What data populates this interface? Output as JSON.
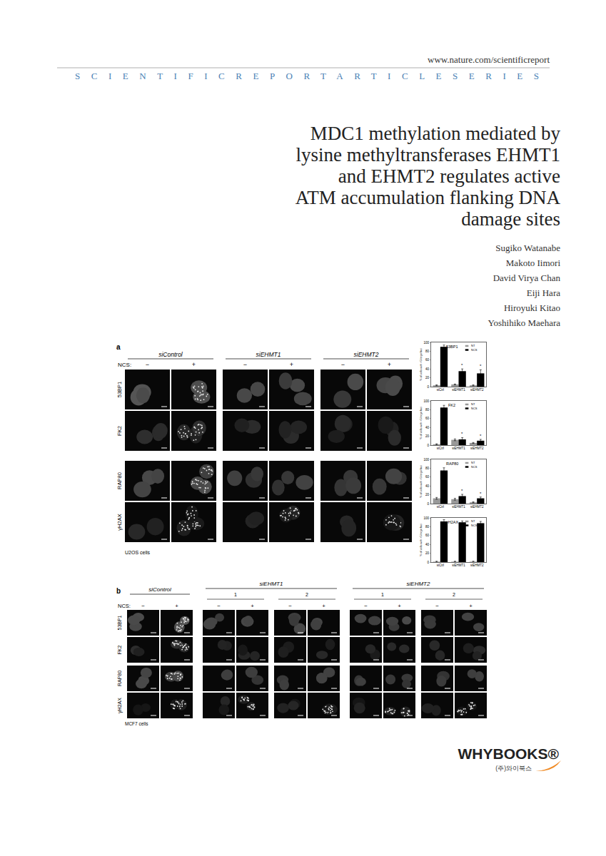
{
  "header": {
    "url": "www.nature.com/scientificreport",
    "series": "SCIENTIFICREPORTARTICLESERIES"
  },
  "title_lines": [
    "MDC1 methylation mediated by",
    "lysine methyltransferases EHMT1",
    "and EHMT2 regulates active",
    "ATM accumulation flanking DNA",
    "damage sites"
  ],
  "authors": [
    "Sugiko Watanabe",
    "Makoto Iimori",
    "David Virya Chan",
    "Eiji Hara",
    "Hiroyuki Kitao",
    "Yoshihiko Maehara"
  ],
  "figure": {
    "panel_a": {
      "label": "a",
      "conditions": [
        "siControl",
        "siEHMT1",
        "siEHMT2"
      ],
      "treatment_label": "NCS:",
      "treatment_states": [
        "−",
        "+"
      ],
      "rows": [
        "53BP1",
        "FK2",
        "RAP80",
        "γH2AX"
      ],
      "cell_line": "U2OS cells"
    },
    "panel_b": {
      "label": "b",
      "conditions": [
        {
          "name": "siControl",
          "sirnas": []
        },
        {
          "name": "siEHMT1",
          "sirnas": [
            "1",
            "2"
          ]
        },
        {
          "name": "siEHMT2",
          "sirnas": [
            "1",
            "2"
          ]
        }
      ],
      "treatment_label": "NCS:",
      "treatment_states": [
        "−",
        "+"
      ],
      "rows": [
        "53BP1",
        "FK2",
        "RAP80",
        "γH2AX"
      ],
      "cell_line": "MCF7 cells"
    }
  },
  "chart_data": [
    {
      "type": "bar",
      "title": "53BP1",
      "categories": [
        "siCtrl",
        "siEHMT1",
        "siEHMT2"
      ],
      "series": [
        {
          "name": "NT",
          "color": "#999999",
          "values": [
            3,
            5,
            3
          ],
          "errors": [
            1,
            1,
            1
          ]
        },
        {
          "name": "NCS",
          "color": "#000000",
          "values": [
            90,
            35,
            30
          ],
          "errors": [
            4,
            5,
            8
          ]
        }
      ],
      "y_label": "% of cells with >5 large foci",
      "ylim": [
        0,
        100
      ],
      "yticks": [
        0,
        20,
        40,
        60,
        80,
        100
      ],
      "grid": false,
      "legend": "upper right",
      "annotations": [
        {
          "category": "siEHMT1",
          "series": "NCS",
          "text": "*"
        },
        {
          "category": "siEHMT2",
          "series": "NCS",
          "text": "*"
        }
      ]
    },
    {
      "type": "bar",
      "title": "FK2",
      "categories": [
        "siCtrl",
        "siEHMT1",
        "siEHMT2"
      ],
      "series": [
        {
          "name": "NT",
          "color": "#999999",
          "values": [
            2,
            12,
            5
          ],
          "errors": [
            1,
            2,
            1
          ]
        },
        {
          "name": "NCS",
          "color": "#000000",
          "values": [
            85,
            13,
            10
          ],
          "errors": [
            5,
            4,
            3
          ]
        }
      ],
      "y_label": "% of cells with >5 large foci",
      "ylim": [
        0,
        100
      ],
      "yticks": [
        0,
        20,
        40,
        60,
        80,
        100
      ],
      "grid": false,
      "legend": "upper right",
      "annotations": [
        {
          "category": "siEHMT1",
          "series": "NCS",
          "text": "*"
        },
        {
          "category": "siEHMT2",
          "series": "NCS",
          "text": "*"
        }
      ]
    },
    {
      "type": "bar",
      "title": "RAP80",
      "categories": [
        "siCtrl",
        "siEHMT1",
        "siEHMT2"
      ],
      "series": [
        {
          "name": "NT",
          "color": "#999999",
          "values": [
            12,
            10,
            3
          ],
          "errors": [
            2,
            2,
            1
          ]
        },
        {
          "name": "NCS",
          "color": "#000000",
          "values": [
            75,
            17,
            12
          ],
          "errors": [
            6,
            4,
            3
          ]
        }
      ],
      "y_label": "% of cells with >5 large foci",
      "ylim": [
        0,
        100
      ],
      "yticks": [
        0,
        20,
        40,
        60,
        80,
        100
      ],
      "grid": false,
      "legend": "upper right",
      "annotations": [
        {
          "category": "siEHMT1",
          "series": "NCS",
          "text": "*"
        },
        {
          "category": "siEHMT2",
          "series": "NCS",
          "text": "*"
        }
      ]
    },
    {
      "type": "bar",
      "title": "γH2AX",
      "categories": [
        "siCtrl",
        "siEHMT1",
        "siEHMT2"
      ],
      "series": [
        {
          "name": "NT",
          "color": "#999999",
          "values": [
            1,
            1,
            1
          ],
          "errors": [
            1,
            1,
            1
          ]
        },
        {
          "name": "NCS",
          "color": "#000000",
          "values": [
            92,
            90,
            88
          ],
          "errors": [
            4,
            3,
            4
          ]
        }
      ],
      "y_label": "% of cells with >5 large foci",
      "ylim": [
        0,
        100
      ],
      "yticks": [
        0,
        20,
        40,
        60,
        80,
        100
      ],
      "grid": false,
      "legend": "upper right",
      "annotations": []
    }
  ],
  "publisher": {
    "name": "WHYBOOKS®",
    "korean": "(주)와이북스"
  }
}
